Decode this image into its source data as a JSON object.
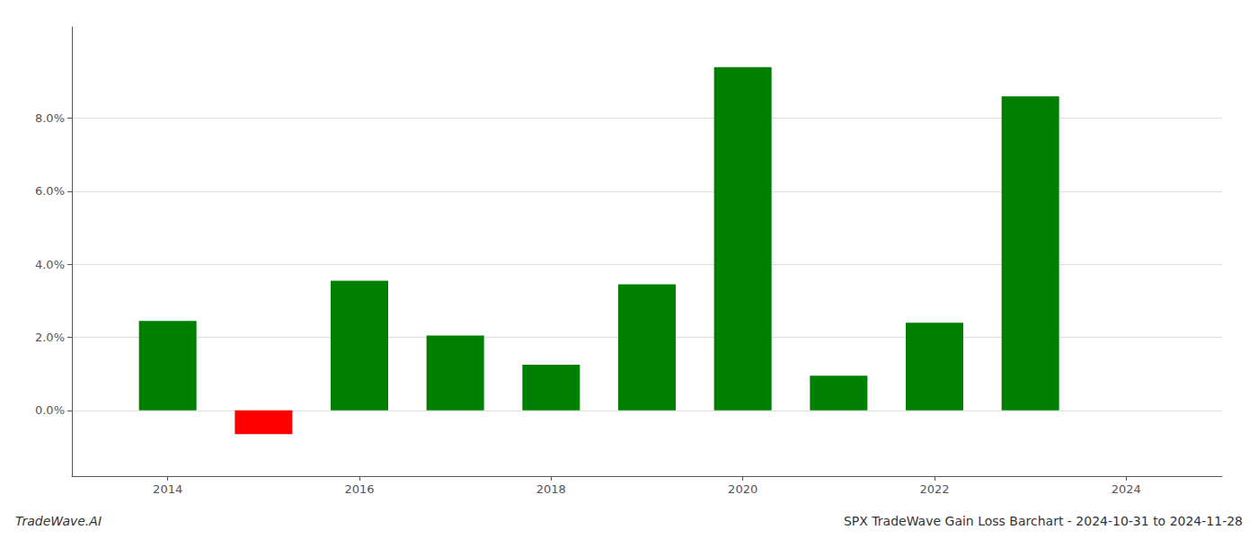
{
  "chart_data": {
    "type": "bar",
    "title": "SPX TradeWave Gain Loss Barchart - 2024-10-31 to 2024-11-28",
    "annotations": [
      "TradeWave.AI"
    ],
    "x": [
      2014,
      2015,
      2016,
      2017,
      2018,
      2019,
      2020,
      2021,
      2022,
      2023
    ],
    "values": [
      0.0245,
      -0.0065,
      0.0355,
      0.0205,
      0.0125,
      0.0345,
      0.094,
      0.0095,
      0.024,
      0.086
    ],
    "colors": [
      "#008000",
      "#ff0000",
      "#008000",
      "#008000",
      "#008000",
      "#008000",
      "#008000",
      "#008000",
      "#008000",
      "#008000"
    ],
    "xlim": [
      2013.0,
      2025.0
    ],
    "xticks": [
      2014,
      2016,
      2018,
      2020,
      2022,
      2024
    ],
    "ylim": [
      -0.018,
      0.105
    ],
    "yticks": [
      {
        "value": 0.0,
        "label": "0.0%"
      },
      {
        "value": 0.02,
        "label": "2.0%"
      },
      {
        "value": 0.04,
        "label": "4.0%"
      },
      {
        "value": 0.06,
        "label": "6.0%"
      },
      {
        "value": 0.08,
        "label": "8.0%"
      }
    ],
    "grid": true
  }
}
